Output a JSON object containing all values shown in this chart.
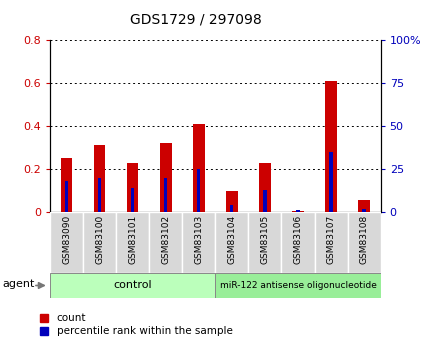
{
  "title": "GDS1729 / 297098",
  "categories": [
    "GSM83090",
    "GSM83100",
    "GSM83101",
    "GSM83102",
    "GSM83103",
    "GSM83104",
    "GSM83105",
    "GSM83106",
    "GSM83107",
    "GSM83108"
  ],
  "count_values": [
    0.25,
    0.31,
    0.23,
    0.32,
    0.41,
    0.1,
    0.23,
    0.005,
    0.61,
    0.055
  ],
  "percentile_values": [
    18,
    20,
    14,
    20,
    25,
    4,
    13,
    1,
    35,
    2
  ],
  "ylim_left": [
    0,
    0.8
  ],
  "ylim_right": [
    0,
    100
  ],
  "yticks_left": [
    0,
    0.2,
    0.4,
    0.6,
    0.8
  ],
  "ytick_labels_left": [
    "0",
    "0.2",
    "0.4",
    "0.6",
    "0.8"
  ],
  "yticks_right": [
    0,
    25,
    50,
    75,
    100
  ],
  "ytick_labels_right": [
    "0",
    "25",
    "50",
    "75",
    "100%"
  ],
  "bar_color": "#cc0000",
  "percentile_color": "#0000bb",
  "control_count": 5,
  "treatment_count": 5,
  "control_label": "control",
  "treatment_label": "miR-122 antisense oligonucleotide",
  "agent_label": "agent",
  "legend_count": "count",
  "legend_percentile": "percentile rank within the sample",
  "bg_color": "#ffffff",
  "bar_width": 0.35,
  "tick_label_color_left": "#cc0000",
  "tick_label_color_right": "#0000bb",
  "cell_bg": "#d8d8d8",
  "control_bg": "#bbffbb",
  "treatment_bg": "#99ee99"
}
